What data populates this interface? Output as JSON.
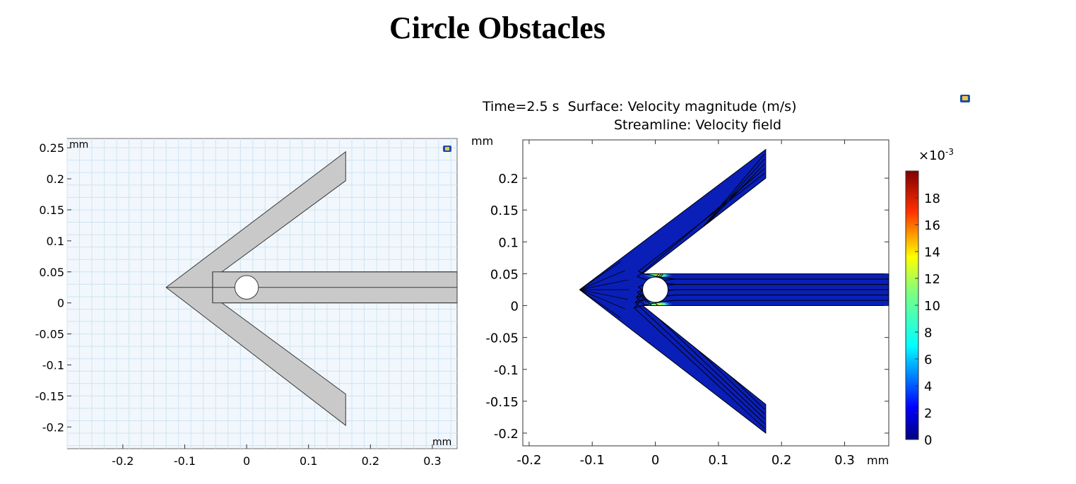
{
  "page": {
    "title": "Circle Obstacles"
  },
  "chart_data": [
    {
      "type": "geometry",
      "unit_label_top": "mm",
      "unit_label_bottom": "mm",
      "xlim": [
        -0.29,
        0.34
      ],
      "ylim": [
        -0.235,
        0.265
      ],
      "xticks": [
        -0.2,
        -0.1,
        0,
        0.1,
        0.2,
        0.3
      ],
      "xtick_labels": [
        "-0.2",
        "-0.1",
        "0",
        "0.1",
        "0.2",
        "0.3"
      ],
      "yticks": [
        0.25,
        0.2,
        0.15,
        0.1,
        0.05,
        0,
        -0.05,
        -0.1,
        -0.15,
        -0.2
      ],
      "ytick_labels": [
        "0.25",
        "0.2",
        "0.15",
        "0.1",
        "0.05",
        "0",
        "-0.05",
        "-0.1",
        "-0.15",
        "-0.2"
      ],
      "grid": true,
      "geometry": {
        "tip": [
          -0.13,
          0.025
        ],
        "upper_arm_end": [
          0.16,
          0.2
        ],
        "lower_arm_end": [
          0.16,
          -0.15
        ],
        "channel_y": [
          0,
          0.05
        ],
        "channel_x_start": -0.055,
        "obstacle_center": [
          0,
          0.025
        ],
        "obstacle_radius": 0.019
      },
      "colors": {
        "background": "#f1f7fc",
        "grid": "#cfe4f3",
        "domain_fill": "#c9c9c9",
        "edge": "#3a3a3a"
      }
    },
    {
      "type": "heatmap",
      "title_line1": "Time=2.5 s  Surface: Velocity magnitude (m/s)",
      "title_line2": "Streamline: Velocity field",
      "ylabel": "mm",
      "xlabel": "mm",
      "xlim": [
        -0.21,
        0.37
      ],
      "ylim": [
        -0.22,
        0.26
      ],
      "xticks": [
        -0.2,
        -0.1,
        0,
        0.1,
        0.2,
        0.3
      ],
      "xtick_labels": [
        "-0.2",
        "-0.1",
        "0",
        "0.1",
        "0.2",
        "0.3"
      ],
      "yticks": [
        0.2,
        0.15,
        0.1,
        0.05,
        0,
        -0.05,
        -0.1,
        -0.15,
        -0.2
      ],
      "ytick_labels": [
        "0.2",
        "0.15",
        "0.1",
        "0.05",
        "0",
        "-0.05",
        "-0.1",
        "-0.15",
        "-0.2"
      ],
      "geometry": {
        "tip": [
          -0.12,
          0.025
        ],
        "upper_arm_end": [
          0.175,
          0.245
        ],
        "lower_arm_end": [
          0.175,
          -0.2
        ],
        "channel_y": [
          0,
          0.05
        ],
        "obstacle_center": [
          0,
          0.025
        ],
        "obstacle_radius": 0.02
      },
      "field_value_range_x1e-3": [
        0,
        2
      ],
      "peak_near_obstacle_x1e-3": 18,
      "colorbar": {
        "exponent_label": "×10",
        "exponent_power": "-3",
        "min": 0,
        "max": 20,
        "ticks": [
          0,
          2,
          4,
          6,
          8,
          10,
          12,
          14,
          16,
          18
        ],
        "tick_labels": [
          "0",
          "2",
          "4",
          "6",
          "8",
          "10",
          "12",
          "14",
          "16",
          "18"
        ],
        "colormap": "rainbow"
      },
      "colors": {
        "field": "#0a1fb8",
        "streamline": "#000000"
      }
    }
  ]
}
